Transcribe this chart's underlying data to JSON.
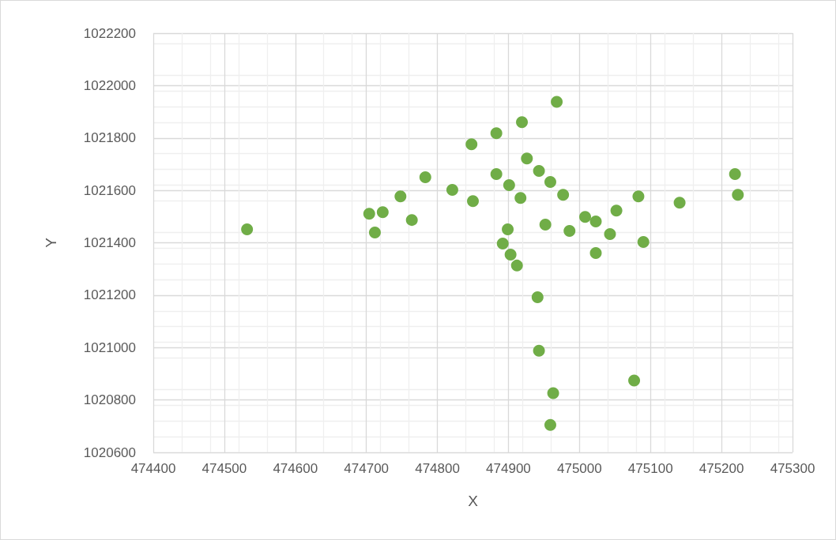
{
  "chart_data": {
    "type": "scatter",
    "xlabel": "X",
    "ylabel": "Y",
    "x": [
      474532,
      474704,
      474712,
      474723,
      474748,
      474764,
      474783,
      474821,
      474848,
      474850,
      474883,
      474883,
      474892,
      474899,
      474901,
      474903,
      474912,
      474917,
      474919,
      474926,
      474941,
      474943,
      474943,
      474952,
      474959,
      474959,
      474963,
      474968,
      474977,
      474986,
      475008,
      475023,
      475023,
      475043,
      475052,
      475077,
      475083,
      475090,
      475141,
      475219,
      475223
    ],
    "series": [
      {
        "color": "#70ad47",
        "values": [
          1021451,
          1021511,
          1021439,
          1021517,
          1021577,
          1021487,
          1021650,
          1021602,
          1021776,
          1021559,
          1021818,
          1021662,
          1021397,
          1021451,
          1021620,
          1021355,
          1021313,
          1021571,
          1021860,
          1021722,
          1021192,
          1021674,
          1020988,
          1021469,
          1021632,
          1020705,
          1020826,
          1021938,
          1021583,
          1021445,
          1021499,
          1021481,
          1021361,
          1021433,
          1021523,
          1020874,
          1021577,
          1021403,
          1021553,
          1021662,
          1021583
        ]
      }
    ],
    "xlim": [
      474400,
      475300
    ],
    "xticks": [
      474400,
      474500,
      474600,
      474700,
      474800,
      474900,
      475000,
      475100,
      475200,
      475300
    ],
    "ylim": [
      1020600,
      1022200
    ],
    "yticks": [
      1020600,
      1020800,
      1021000,
      1021200,
      1021400,
      1021600,
      1021800,
      1022000,
      1022200
    ],
    "grid": true,
    "marker": "circle"
  }
}
